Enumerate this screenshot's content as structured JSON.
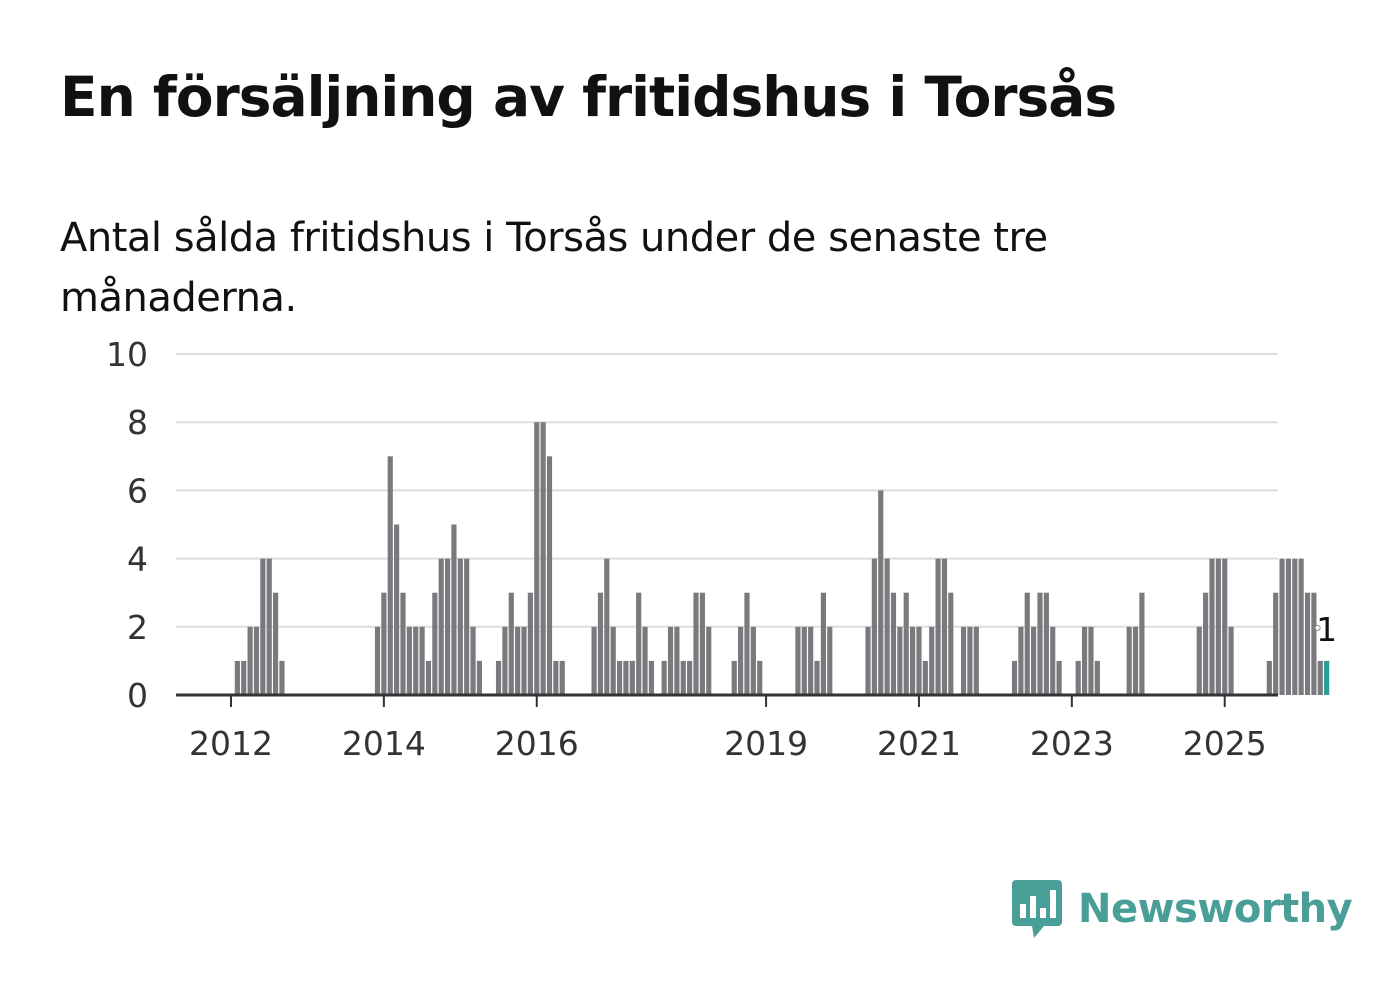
{
  "title": "En försäljning av fritidshus i Torsås",
  "subtitle": "Antal sålda fritidshus i Torsås under de senaste tre månaderna.",
  "brand": {
    "name": "Newsworthy",
    "icon": "newsworthy-logo-icon",
    "color": "#4a9e98"
  },
  "chart_data": {
    "type": "bar",
    "title": "En försäljning av fritidshus i Torsås",
    "subtitle": "Antal sålda fritidshus i Torsås under de senaste tre månaderna.",
    "xlabel": "",
    "ylabel": "",
    "ylim": [
      0,
      10
    ],
    "yticks": [
      0,
      2,
      4,
      6,
      8,
      10
    ],
    "x_tick_labels": [
      "2012",
      "2014",
      "2016",
      "2019",
      "2021",
      "2023",
      "2025"
    ],
    "grid": true,
    "bar_color": "#7a797d",
    "highlight_color": "#2a9d95",
    "highlight_last": true,
    "last_value_label": "1",
    "start": "2011-07",
    "frequency": "monthly",
    "values": [
      0,
      0,
      0,
      0,
      0,
      0,
      0,
      1,
      1,
      2,
      2,
      4,
      4,
      3,
      1,
      0,
      0,
      0,
      0,
      0,
      0,
      0,
      0,
      0,
      0,
      0,
      0,
      0,
      0,
      2,
      3,
      7,
      5,
      3,
      2,
      2,
      2,
      1,
      3,
      4,
      4,
      5,
      4,
      4,
      2,
      1,
      0,
      0,
      1,
      2,
      3,
      2,
      2,
      3,
      8,
      8,
      7,
      1,
      1,
      0,
      0,
      0,
      0,
      2,
      3,
      4,
      2,
      1,
      1,
      1,
      3,
      2,
      1,
      0,
      1,
      2,
      2,
      1,
      1,
      3,
      3,
      2,
      0,
      0,
      0,
      1,
      2,
      3,
      2,
      1,
      0,
      0,
      0,
      0,
      0,
      2,
      2,
      2,
      1,
      3,
      2,
      0,
      0,
      0,
      0,
      0,
      2,
      4,
      6,
      4,
      3,
      2,
      3,
      2,
      2,
      1,
      2,
      4,
      4,
      3,
      0,
      2,
      2,
      2,
      0,
      0,
      0,
      0,
      0,
      1,
      2,
      3,
      2,
      3,
      3,
      2,
      1,
      0,
      0,
      1,
      2,
      2,
      1,
      0,
      0,
      0,
      0,
      2,
      2,
      3,
      0,
      0,
      0,
      0,
      0,
      0,
      0,
      0,
      2,
      3,
      4,
      4,
      4,
      2,
      0,
      0,
      0,
      0,
      0,
      1,
      3,
      4,
      4,
      4,
      4,
      3,
      3,
      1,
      1
    ]
  }
}
